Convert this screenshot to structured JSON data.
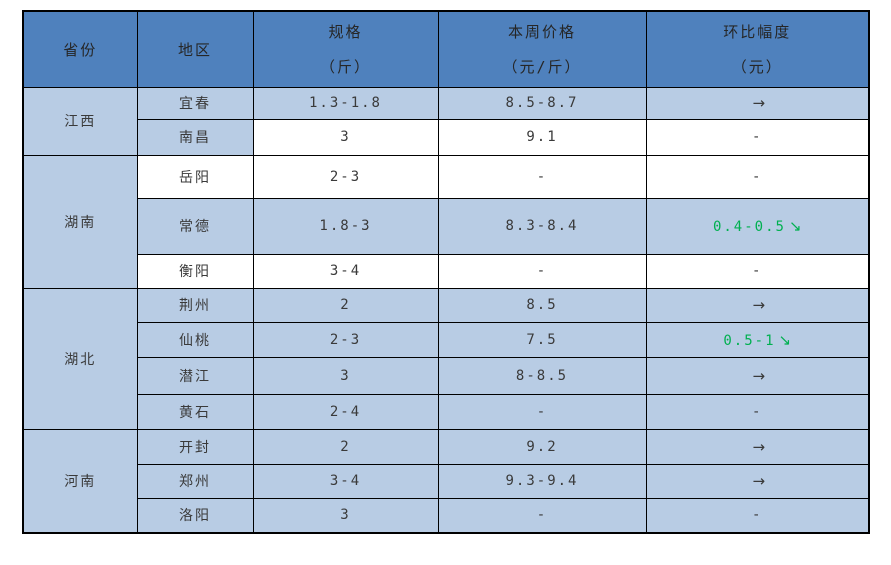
{
  "palette": {
    "header_bg": "#4f81bd",
    "band_bg": "#b8cce4",
    "border": "#000000",
    "text": "#3a3a3a",
    "green": "#00b050"
  },
  "table": {
    "columns": [
      {
        "title": "省份",
        "unit": ""
      },
      {
        "title": "地区",
        "unit": ""
      },
      {
        "title": "规格",
        "unit": "（斤）"
      },
      {
        "title": "本周价格",
        "unit": "（元/斤）"
      },
      {
        "title": "环比幅度",
        "unit": "（元）"
      }
    ],
    "groups": [
      {
        "province": "江西",
        "rows": [
          {
            "region": "宜春",
            "spec": "1.3-1.8",
            "price": "8.5-8.7",
            "change": {
              "text": "",
              "arrow": "→",
              "tone": "dark"
            },
            "shaded": true,
            "region_shaded": true
          },
          {
            "region": "南昌",
            "spec": "3",
            "price": "9.1",
            "change": {
              "text": "-",
              "arrow": "",
              "tone": "dark"
            },
            "shaded": false,
            "region_shaded": true
          }
        ]
      },
      {
        "province": "湖南",
        "rows": [
          {
            "region": "岳阳",
            "spec": "2-3",
            "price": "-",
            "change": {
              "text": "-",
              "arrow": "",
              "tone": "dark"
            },
            "shaded": false,
            "region_shaded": false
          },
          {
            "region": "常德",
            "spec": "1.8-3",
            "price": "8.3-8.4",
            "change": {
              "text": "0.4-0.5",
              "arrow": "↘",
              "tone": "green"
            },
            "shaded": true,
            "region_shaded": true
          },
          {
            "region": "衡阳",
            "spec": "3-4",
            "price": "-",
            "change": {
              "text": "-",
              "arrow": "",
              "tone": "dark"
            },
            "shaded": false,
            "region_shaded": false
          }
        ]
      },
      {
        "province": "湖北",
        "rows": [
          {
            "region": "荆州",
            "spec": "2",
            "price": "8.5",
            "change": {
              "text": "",
              "arrow": "→",
              "tone": "dark"
            },
            "shaded": true,
            "region_shaded": true
          },
          {
            "region": "仙桃",
            "spec": "2-3",
            "price": "7.5",
            "change": {
              "text": "0.5-1",
              "arrow": "↘",
              "tone": "green"
            },
            "shaded": true,
            "region_shaded": true
          },
          {
            "region": "潜江",
            "spec": "3",
            "price": "8-8.5",
            "change": {
              "text": "",
              "arrow": "→",
              "tone": "dark"
            },
            "shaded": true,
            "region_shaded": true
          },
          {
            "region": "黄石",
            "spec": "2-4",
            "price": "-",
            "change": {
              "text": "-",
              "arrow": "",
              "tone": "dark"
            },
            "shaded": true,
            "region_shaded": true
          }
        ]
      },
      {
        "province": "河南",
        "rows": [
          {
            "region": "开封",
            "spec": "2",
            "price": "9.2",
            "change": {
              "text": "",
              "arrow": "→",
              "tone": "dark"
            },
            "shaded": true,
            "region_shaded": true
          },
          {
            "region": "郑州",
            "spec": "3-4",
            "price": "9.3-9.4",
            "change": {
              "text": "",
              "arrow": "→",
              "tone": "dark"
            },
            "shaded": true,
            "region_shaded": true
          },
          {
            "region": "洛阳",
            "spec": "3",
            "price": "-",
            "change": {
              "text": "-",
              "arrow": "",
              "tone": "dark"
            },
            "shaded": true,
            "region_shaded": true
          }
        ]
      }
    ]
  },
  "chart_data": {
    "type": "table",
    "title": "",
    "columns": [
      "省份",
      "地区",
      "规格（斤）",
      "本周价格（元/斤）",
      "环比幅度（元）"
    ],
    "rows": [
      [
        "江西",
        "宜春",
        "1.3-1.8",
        "8.5-8.7",
        "→"
      ],
      [
        "江西",
        "南昌",
        "3",
        "9.1",
        "-"
      ],
      [
        "湖南",
        "岳阳",
        "2-3",
        "-",
        "-"
      ],
      [
        "湖南",
        "常德",
        "1.8-3",
        "8.3-8.4",
        "0.4-0.5↘"
      ],
      [
        "湖南",
        "衡阳",
        "3-4",
        "-",
        "-"
      ],
      [
        "湖北",
        "荆州",
        "2",
        "8.5",
        "→"
      ],
      [
        "湖北",
        "仙桃",
        "2-3",
        "7.5",
        "0.5-1↘"
      ],
      [
        "湖北",
        "潜江",
        "3",
        "8-8.5",
        "→"
      ],
      [
        "湖北",
        "黄石",
        "2-4",
        "-",
        "-"
      ],
      [
        "河南",
        "开封",
        "2",
        "9.2",
        "→"
      ],
      [
        "河南",
        "郑州",
        "3-4",
        "9.3-9.4",
        "→"
      ],
      [
        "河南",
        "洛阳",
        "3",
        "-",
        "-"
      ]
    ]
  }
}
